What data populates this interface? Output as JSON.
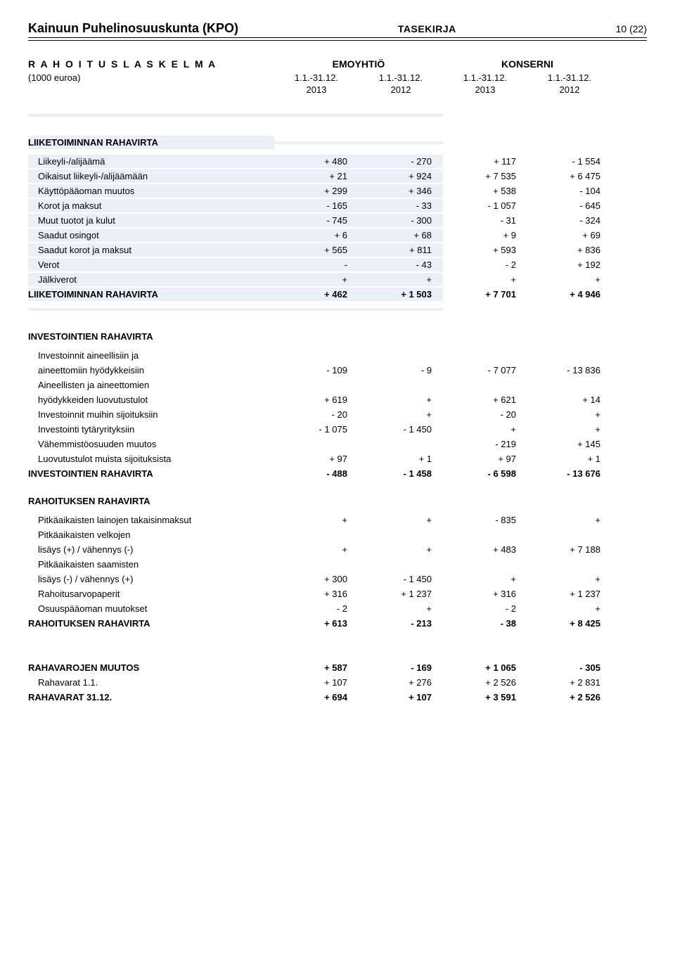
{
  "header": {
    "company": "Kainuun Puhelinosuuskunta (KPO)",
    "docType": "TASEKIRJA",
    "pageNum": "10 (22)"
  },
  "titles": {
    "main": "R A H O I T U S L A S K E L M A",
    "group1": "EMOYHTIÖ",
    "group2": "KONSERNI",
    "subLeft": "(1000 euroa)",
    "period": "1.1.-31.12.",
    "y2013": "2013",
    "y2012": "2012"
  },
  "sections": {
    "liik": {
      "title": "LIIKETOIMINNAN RAHAVIRTA",
      "rows": [
        {
          "label": "Liikeyli-/alijäämä",
          "v": [
            "+ 480",
            "- 270",
            "+ 117",
            "- 1 554"
          ]
        },
        {
          "label": "Oikaisut liikeyli-/alijäämään",
          "v": [
            "+ 21",
            "+ 924",
            "+ 7 535",
            "+ 6 475"
          ]
        },
        {
          "label": "Käyttöpääoman muutos",
          "v": [
            "+ 299",
            "+ 346",
            "+ 538",
            "- 104"
          ]
        },
        {
          "label": "Korot ja maksut",
          "v": [
            "- 165",
            "- 33",
            "- 1 057",
            "- 645"
          ]
        },
        {
          "label": "Muut tuotot ja kulut",
          "v": [
            "- 745",
            "- 300",
            "- 31",
            "- 324"
          ]
        },
        {
          "label": "Saadut osingot",
          "v": [
            "+ 6",
            "+ 68",
            "+ 9",
            "+ 69"
          ]
        },
        {
          "label": "Saadut korot ja maksut",
          "v": [
            "+ 565",
            "+ 811",
            "+ 593",
            "+ 836"
          ]
        },
        {
          "label": "Verot",
          "v": [
            "-",
            "- 43",
            "- 2",
            "+ 192"
          ]
        },
        {
          "label": "Jälkiverot",
          "v": [
            "+",
            "+",
            "+",
            "+"
          ]
        }
      ],
      "total": {
        "label": "LIIKETOIMINNAN RAHAVIRTA",
        "v": [
          "+ 462",
          "+ 1 503",
          "+ 7 701",
          "+ 4 946"
        ]
      }
    },
    "inv": {
      "title": "INVESTOINTIEN RAHAVIRTA",
      "rows": [
        {
          "label": "Investoinnit aineellisiin ja",
          "v": [
            "",
            "",
            "",
            ""
          ]
        },
        {
          "label": "aineettomiin hyödykkeisiin",
          "v": [
            "- 109",
            "- 9",
            "- 7 077",
            "- 13 836"
          ]
        },
        {
          "label": "Aineellisten ja aineettomien",
          "v": [
            "",
            "",
            "",
            ""
          ]
        },
        {
          "label": "hyödykkeiden luovutustulot",
          "v": [
            "+ 619",
            "+",
            "+ 621",
            "+ 14"
          ]
        },
        {
          "label": "Investoinnit muihin sijoituksiin",
          "v": [
            "- 20",
            "+",
            "- 20",
            "+"
          ]
        },
        {
          "label": "Investointi tytäryrityksiin",
          "v": [
            "- 1 075",
            "- 1 450",
            "+",
            "+"
          ]
        },
        {
          "label": "Vähemmistöosuuden muutos",
          "v": [
            "",
            "",
            "- 219",
            "+ 145"
          ]
        },
        {
          "label": "Luovutustulot muista sijoituksista",
          "v": [
            "+ 97",
            "+ 1",
            "+ 97",
            "+ 1"
          ]
        }
      ],
      "total": {
        "label": "INVESTOINTIEN RAHAVIRTA",
        "v": [
          "- 488",
          "- 1 458",
          "- 6 598",
          "- 13 676"
        ]
      }
    },
    "rah": {
      "title": "RAHOITUKSEN RAHAVIRTA",
      "rows": [
        {
          "label": "Pitkäaikaisten lainojen takaisinmaksut",
          "v": [
            "+",
            "+",
            "- 835",
            "+"
          ]
        },
        {
          "label": "Pitkäaikaisten velkojen",
          "v": [
            "",
            "",
            "",
            ""
          ]
        },
        {
          "label": "lisäys (+) / vähennys (-)",
          "v": [
            "+",
            "+",
            "+ 483",
            "+ 7 188"
          ]
        },
        {
          "label": "Pitkäaikaisten saamisten",
          "v": [
            "",
            "",
            "",
            ""
          ]
        },
        {
          "label": "lisäys (-) / vähennys (+)",
          "v": [
            "+ 300",
            "- 1 450",
            "+",
            "+"
          ]
        },
        {
          "label": "Rahoitusarvopaperit",
          "v": [
            "+ 316",
            "+ 1 237",
            "+ 316",
            "+ 1 237"
          ]
        },
        {
          "label": "Osuuspääoman muutokset",
          "v": [
            "- 2",
            "+",
            "- 2",
            "+"
          ]
        }
      ],
      "total": {
        "label": "RAHOITUKSEN RAHAVIRTA",
        "v": [
          "+ 613",
          "- 213",
          "- 38",
          "+ 8 425"
        ]
      }
    },
    "muutos": {
      "rows": [
        {
          "label": "RAHAVAROJEN MUUTOS",
          "bold": true,
          "v": [
            "+ 587",
            "- 169",
            "+ 1 065",
            "- 305"
          ]
        },
        {
          "label": "Rahavarat 1.1.",
          "v": [
            "+ 107",
            "+ 276",
            "+ 2 526",
            "+ 2 831"
          ]
        },
        {
          "label": "RAHAVARAT 31.12.",
          "bold": true,
          "v": [
            "+ 694",
            "+ 107",
            "+ 3 591",
            "+ 2 526"
          ]
        }
      ]
    }
  },
  "colors": {
    "shade": "#eaf0f8",
    "text": "#000000",
    "bg": "#ffffff"
  }
}
